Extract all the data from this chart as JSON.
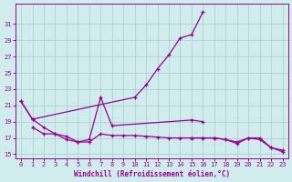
{
  "xlabel": "Windchill (Refroidissement éolien,°C)",
  "color": "#990099",
  "bg_color": "#d0ecec",
  "grid_color": "#aacccc",
  "ylim_min": 14.5,
  "ylim_max": 33.5,
  "xlim_min": -0.5,
  "xlim_max": 23.5,
  "yticks": [
    15,
    17,
    19,
    21,
    23,
    25,
    27,
    29,
    31
  ],
  "xticks": [
    0,
    1,
    2,
    3,
    4,
    5,
    6,
    7,
    8,
    9,
    10,
    11,
    12,
    13,
    14,
    15,
    16,
    17,
    18,
    19,
    20,
    21,
    22,
    23
  ],
  "curve1_x": [
    0,
    1,
    10,
    11,
    12,
    13,
    14,
    15,
    16
  ],
  "curve1_y": [
    21.5,
    19.3,
    22.0,
    23.5,
    25.5,
    27.2,
    29.3,
    29.7,
    32.5
  ],
  "curve2_x": [
    0,
    1,
    2,
    3,
    4,
    5,
    6,
    7,
    8,
    15,
    16
  ],
  "curve2_y": [
    21.5,
    19.3,
    18.3,
    17.5,
    16.8,
    16.5,
    16.8,
    22.0,
    18.5,
    19.2,
    19.0
  ],
  "curve3_x": [
    1,
    2,
    3,
    4,
    5,
    6,
    7,
    8,
    9,
    10,
    11,
    12,
    13,
    14,
    15,
    16,
    17,
    18,
    19,
    20,
    21,
    22,
    23
  ],
  "curve3_y": [
    18.3,
    17.5,
    17.5,
    17.2,
    16.5,
    16.5,
    17.5,
    17.3,
    17.3,
    17.3,
    17.2,
    17.1,
    17.0,
    17.0,
    17.0,
    17.0,
    17.0,
    16.8,
    16.5,
    17.0,
    17.0,
    15.8,
    15.5
  ],
  "curve4_x": [
    15,
    16,
    17,
    18,
    19,
    20,
    21,
    22,
    23
  ],
  "curve4_y": [
    17.0,
    17.0,
    17.0,
    16.8,
    16.3,
    17.0,
    16.8,
    15.8,
    15.3
  ]
}
